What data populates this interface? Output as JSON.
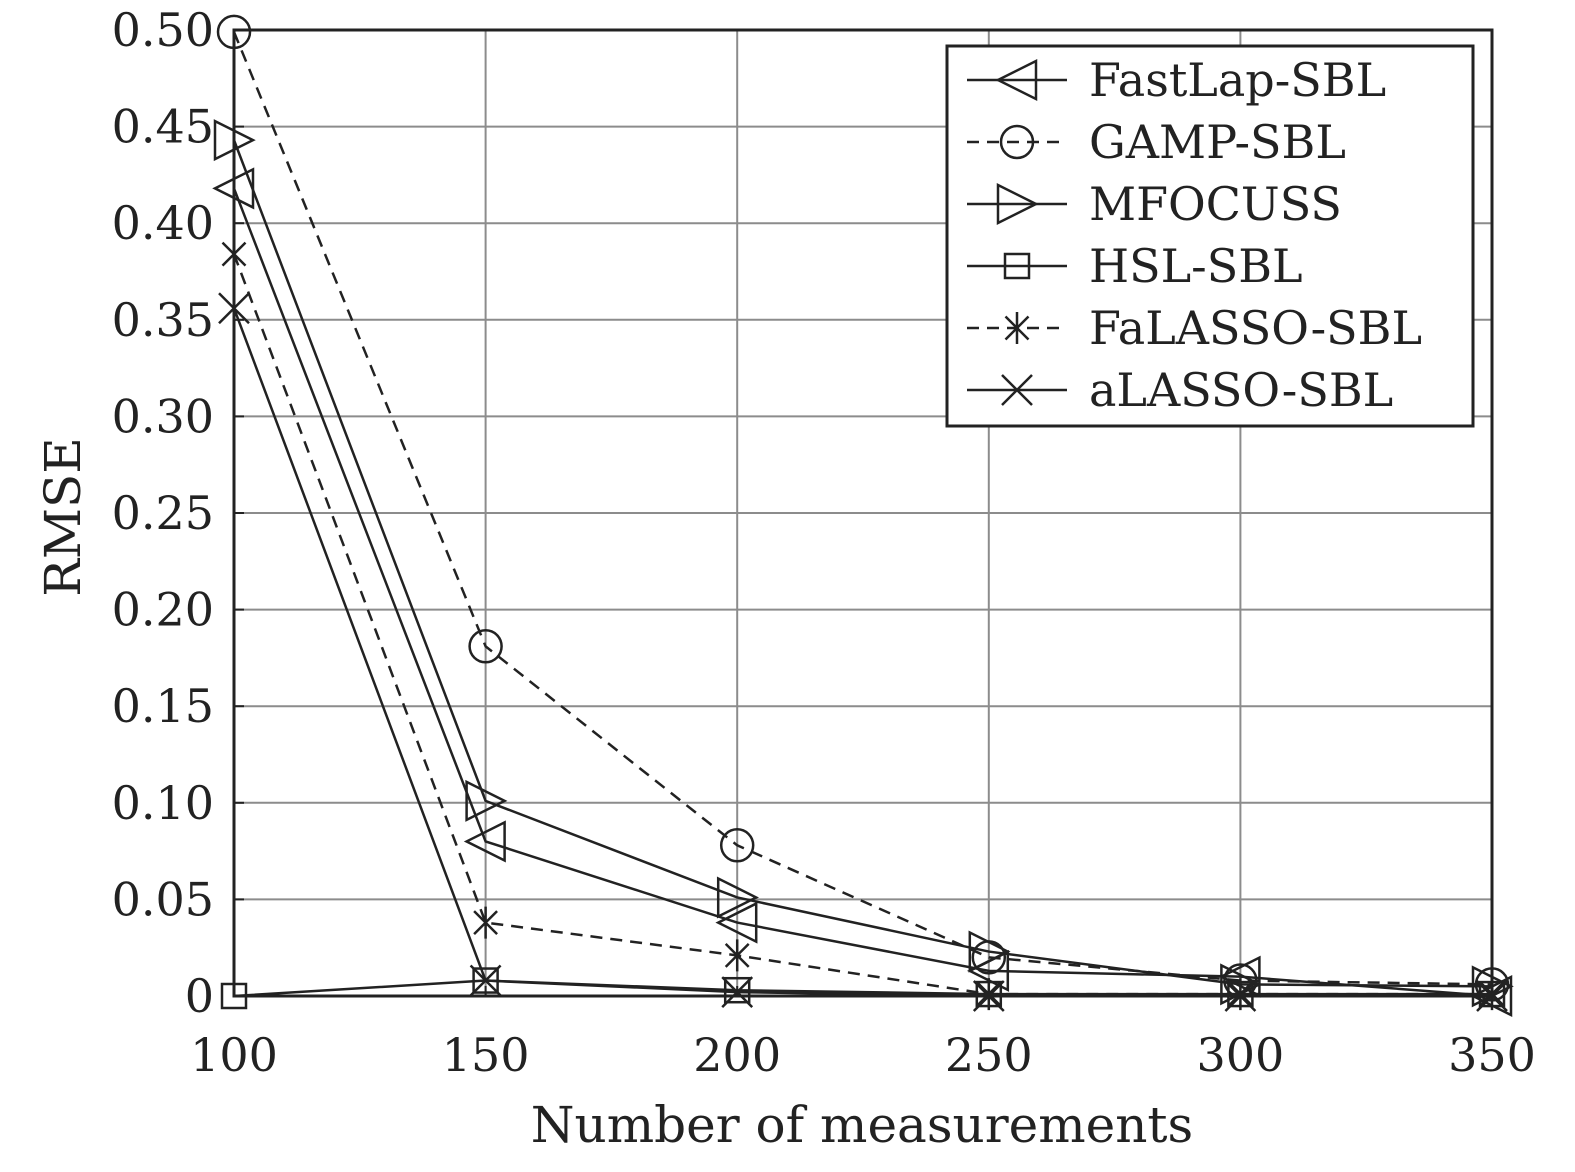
{
  "chart_data": {
    "type": "line",
    "title": "",
    "xlabel": "Number of measurements",
    "ylabel": "RMSE",
    "x": [
      100,
      150,
      200,
      250,
      300,
      350
    ],
    "xlim": [
      100,
      350
    ],
    "ylim": [
      0,
      0.5
    ],
    "xticks": [
      "100",
      "150",
      "200",
      "250",
      "300",
      "350"
    ],
    "yticks": [
      "0",
      "0.05",
      "0.10",
      "0.15",
      "0.20",
      "0.25",
      "0.30",
      "0.35",
      "0.40",
      "0.45",
      "0.50"
    ],
    "grid": true,
    "legend_position": "top-right",
    "series": [
      {
        "name": "FastLap-SBL",
        "marker": "triangle-left",
        "dash": "solid",
        "values": [
          0.418,
          0.08,
          0.038,
          0.013,
          0.01,
          0.0
        ]
      },
      {
        "name": "GAMP-SBL",
        "marker": "circle",
        "dash": "dashed",
        "values": [
          0.499,
          0.181,
          0.078,
          0.02,
          0.008,
          0.006
        ]
      },
      {
        "name": "MFOCUSS",
        "marker": "triangle-right",
        "dash": "solid",
        "values": [
          0.443,
          0.101,
          0.051,
          0.023,
          0.006,
          0.005
        ]
      },
      {
        "name": "HSL-SBL",
        "marker": "square",
        "dash": "solid",
        "values": [
          0.0,
          0.008,
          0.003,
          0.001,
          0.001,
          0.001
        ]
      },
      {
        "name": "FaLASSO-SBL",
        "marker": "asterisk",
        "dash": "dashed",
        "values": [
          0.384,
          0.038,
          0.021,
          0.001,
          0.001,
          0.001
        ]
      },
      {
        "name": "aLASSO-SBL",
        "marker": "x",
        "dash": "solid",
        "values": [
          0.356,
          0.008,
          0.002,
          0.0,
          0.0,
          0.0
        ]
      }
    ],
    "colors": {
      "line": "#222222",
      "grid": "#8c8c8c",
      "background": "#ffffff"
    }
  }
}
